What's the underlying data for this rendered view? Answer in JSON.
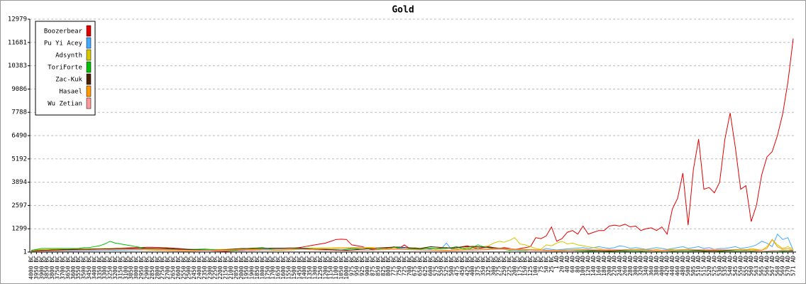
{
  "chart_data": {
    "type": "line",
    "title": "Gold",
    "categories": [
      "4000 BC",
      "3950 BC",
      "3900 BC",
      "3850 BC",
      "3800 BC",
      "3750 BC",
      "3700 BC",
      "3650 BC",
      "3600 BC",
      "3550 BC",
      "3500 BC",
      "3450 BC",
      "3400 BC",
      "3350 BC",
      "3300 BC",
      "3250 BC",
      "3200 BC",
      "3150 BC",
      "3100 BC",
      "3050 BC",
      "3000 BC",
      "2950 BC",
      "2900 BC",
      "2850 BC",
      "2800 BC",
      "2750 BC",
      "2700 BC",
      "2650 BC",
      "2600 BC",
      "2550 BC",
      "2500 BC",
      "2450 BC",
      "2400 BC",
      "2350 BC",
      "2300 BC",
      "2250 BC",
      "2200 BC",
      "2150 BC",
      "2100 BC",
      "2050 BC",
      "2000 BC",
      "1950 BC",
      "1900 BC",
      "1850 BC",
      "1800 BC",
      "1750 BC",
      "1700 BC",
      "1650 BC",
      "1600 BC",
      "1550 BC",
      "1500 BC",
      "1450 BC",
      "1400 BC",
      "1350 BC",
      "1300 BC",
      "1250 BC",
      "1200 BC",
      "1150 BC",
      "1100 BC",
      "1050 BC",
      "1000 BC",
      "975 BC",
      "950 BC",
      "925 BC",
      "900 BC",
      "875 BC",
      "850 BC",
      "825 BC",
      "800 BC",
      "775 BC",
      "750 BC",
      "725 BC",
      "700 BC",
      "675 BC",
      "650 BC",
      "625 BC",
      "600 BC",
      "575 BC",
      "550 BC",
      "525 BC",
      "500 BC",
      "475 BC",
      "450 BC",
      "425 BC",
      "400 BC",
      "375 BC",
      "350 BC",
      "325 BC",
      "300 BC",
      "275 BC",
      "250 BC",
      "225 BC",
      "200 BC",
      "175 BC",
      "150 BC",
      "125 BC",
      "100 BC",
      "75 BC",
      "50 BC",
      "25 BC",
      "1 AD",
      "20 AD",
      "40 AD",
      "60 AD",
      "80 AD",
      "100 AD",
      "120 AD",
      "140 AD",
      "160 AD",
      "180 AD",
      "200 AD",
      "220 AD",
      "240 AD",
      "260 AD",
      "280 AD",
      "300 AD",
      "320 AD",
      "340 AD",
      "360 AD",
      "380 AD",
      "400 AD",
      "420 AD",
      "440 AD",
      "460 AD",
      "480 AD",
      "500 AD",
      "505 AD",
      "510 AD",
      "515 AD",
      "520 AD",
      "525 AD",
      "530 AD",
      "535 AD",
      "540 AD",
      "545 AD",
      "550 AD",
      "555 AD",
      "560 AD",
      "563 AD",
      "565 AD",
      "566 AD",
      "567 AD",
      "568 AD",
      "569 AD",
      "570 AD",
      "571 AD"
    ],
    "series": [
      {
        "name": "Boozerbear",
        "color": "#e00000",
        "values": [
          50,
          60,
          80,
          90,
          100,
          100,
          110,
          120,
          130,
          140,
          150,
          160,
          170,
          180,
          190,
          200,
          210,
          220,
          230,
          240,
          250,
          260,
          270,
          270,
          260,
          250,
          240,
          220,
          200,
          180,
          160,
          140,
          120,
          100,
          80,
          60,
          50,
          40,
          50,
          60,
          70,
          80,
          90,
          100,
          120,
          140,
          150,
          160,
          180,
          200,
          220,
          250,
          300,
          350,
          400,
          450,
          500,
          600,
          700,
          720,
          700,
          400,
          350,
          300,
          200,
          150,
          200,
          180,
          250,
          150,
          200,
          400,
          200,
          150,
          200,
          250,
          180,
          200,
          220,
          250,
          200,
          250,
          300,
          350,
          250,
          200,
          250,
          300,
          250,
          200,
          250,
          200,
          150,
          200,
          250,
          300,
          800,
          750,
          900,
          1400,
          600,
          750,
          1100,
          1200,
          1000,
          1450,
          1000,
          1100,
          1200,
          1200,
          1450,
          1500,
          1450,
          1550,
          1400,
          1450,
          1200,
          1300,
          1350,
          1200,
          1400,
          1000,
          2400,
          3000,
          4400,
          1500,
          4600,
          6300,
          3500,
          3600,
          3300,
          3900,
          6300,
          7750,
          5800,
          3500,
          3700,
          1700,
          2600,
          4300,
          5300,
          5600,
          6500,
          7700,
          9500,
          11900
        ]
      },
      {
        "name": "Pu Yi Acey",
        "color": "#44aaff",
        "values": [
          10,
          20,
          30,
          40,
          50,
          50,
          60,
          60,
          70,
          70,
          80,
          80,
          90,
          90,
          100,
          100,
          100,
          110,
          110,
          120,
          120,
          120,
          130,
          130,
          130,
          140,
          140,
          140,
          150,
          150,
          150,
          150,
          140,
          130,
          120,
          110,
          100,
          100,
          100,
          110,
          120,
          130,
          140,
          150,
          150,
          160,
          160,
          170,
          170,
          180,
          180,
          180,
          190,
          190,
          200,
          200,
          200,
          210,
          210,
          220,
          220,
          220,
          230,
          230,
          240,
          240,
          250,
          250,
          260,
          260,
          250,
          200,
          150,
          150,
          180,
          200,
          150,
          200,
          180,
          500,
          150,
          180,
          200,
          220,
          150,
          200,
          180,
          150,
          200,
          150,
          180,
          120,
          100,
          80,
          100,
          150,
          120,
          100,
          200,
          150,
          120,
          150,
          180,
          200,
          220,
          250,
          200,
          250,
          300,
          250,
          200,
          250,
          350,
          300,
          200,
          250,
          200,
          150,
          200,
          250,
          200,
          150,
          200,
          250,
          300,
          200,
          250,
          300,
          200,
          250,
          150,
          200,
          200,
          250,
          300,
          200,
          250,
          300,
          400,
          600,
          500,
          300,
          1000,
          700,
          800,
          100
        ]
      },
      {
        "name": "Adsynth",
        "color": "#d4c800",
        "values": [
          100,
          120,
          140,
          150,
          150,
          160,
          160,
          170,
          170,
          180,
          180,
          180,
          190,
          190,
          200,
          200,
          200,
          210,
          210,
          200,
          200,
          190,
          180,
          170,
          160,
          150,
          140,
          130,
          120,
          110,
          100,
          100,
          110,
          120,
          130,
          140,
          150,
          150,
          160,
          160,
          170,
          170,
          180,
          180,
          190,
          190,
          200,
          200,
          200,
          210,
          210,
          210,
          220,
          220,
          220,
          230,
          230,
          230,
          240,
          240,
          240,
          250,
          250,
          250,
          260,
          260,
          200,
          150,
          200,
          250,
          200,
          150,
          200,
          250,
          200,
          250,
          200,
          150,
          200,
          250,
          200,
          150,
          200,
          250,
          300,
          250,
          300,
          350,
          500,
          600,
          550,
          650,
          800,
          450,
          400,
          300,
          200,
          150,
          400,
          350,
          500,
          600,
          450,
          500,
          400,
          350,
          300,
          250,
          200,
          150,
          150,
          120,
          100,
          150,
          120,
          100,
          150,
          120,
          100,
          150,
          100,
          120,
          150,
          100,
          120,
          150,
          100,
          120,
          150,
          100,
          120,
          150,
          100,
          120,
          150,
          100,
          120,
          200,
          150,
          100,
          300,
          700,
          400,
          200,
          300,
          150
        ]
      },
      {
        "name": "ToriForte",
        "color": "#00c000",
        "values": [
          100,
          150,
          200,
          200,
          200,
          200,
          200,
          200,
          200,
          200,
          250,
          250,
          300,
          350,
          450,
          600,
          500,
          450,
          400,
          350,
          300,
          250,
          200,
          200,
          200,
          200,
          200,
          180,
          160,
          150,
          150,
          150,
          160,
          170,
          150,
          130,
          120,
          110,
          100,
          100,
          150,
          200,
          220,
          230,
          250,
          200,
          150,
          100,
          120,
          150,
          180,
          200,
          220,
          200,
          180,
          160,
          150,
          140,
          130,
          120,
          150,
          200,
          180,
          150,
          200,
          100,
          150,
          200,
          150,
          300,
          200,
          150,
          200,
          180,
          150,
          200,
          220,
          200,
          180,
          200,
          250,
          300,
          200,
          150,
          250,
          400,
          300,
          250,
          200,
          200,
          150,
          100,
          120,
          100,
          80,
          100,
          120,
          100,
          80,
          60,
          50,
          60,
          70,
          80,
          60,
          50,
          40,
          50,
          60,
          50,
          40,
          50,
          60,
          40,
          50,
          60,
          40,
          50,
          60,
          40,
          50,
          60,
          40,
          50,
          60,
          40,
          50,
          60,
          40,
          50,
          60,
          40,
          50,
          60,
          40,
          50,
          60,
          40,
          50,
          60,
          40,
          50,
          60,
          40,
          50,
          60
        ]
      },
      {
        "name": "Zac-Kuk",
        "color": "#4a2000",
        "values": [
          50,
          80,
          100,
          100,
          120,
          120,
          140,
          140,
          150,
          150,
          160,
          160,
          170,
          170,
          180,
          180,
          190,
          190,
          200,
          200,
          200,
          200,
          210,
          210,
          200,
          190,
          180,
          170,
          160,
          150,
          140,
          130,
          120,
          110,
          100,
          100,
          120,
          140,
          160,
          180,
          200,
          200,
          200,
          210,
          210,
          210,
          220,
          220,
          220,
          230,
          230,
          230,
          200,
          180,
          160,
          150,
          140,
          130,
          120,
          110,
          100,
          120,
          140,
          160,
          180,
          200,
          220,
          240,
          260,
          280,
          280,
          260,
          240,
          220,
          200,
          250,
          300,
          280,
          260,
          240,
          220,
          250,
          280,
          300,
          320,
          300,
          280,
          260,
          240,
          220,
          200,
          180,
          160,
          140,
          120,
          100,
          90,
          80,
          70,
          60,
          60,
          70,
          80,
          90,
          100,
          100,
          90,
          80,
          70,
          60,
          60,
          70,
          80,
          90,
          100,
          100,
          90,
          80,
          70,
          60,
          60,
          70,
          80,
          90,
          100,
          100,
          90,
          80,
          70,
          60,
          60,
          70,
          80,
          90,
          100,
          100,
          90,
          80,
          70,
          60,
          60,
          70,
          80,
          90,
          100,
          60
        ]
      },
      {
        "name": "Hasael",
        "color": "#ff9900",
        "values": [
          30,
          40,
          50,
          60,
          70,
          80,
          90,
          100,
          100,
          110,
          110,
          120,
          120,
          130,
          130,
          140,
          140,
          150,
          150,
          150,
          140,
          130,
          120,
          110,
          100,
          90,
          80,
          70,
          60,
          50,
          50,
          60,
          70,
          80,
          90,
          100,
          110,
          120,
          130,
          140,
          150,
          150,
          140,
          130,
          120,
          110,
          100,
          100,
          110,
          120,
          130,
          140,
          150,
          160,
          170,
          180,
          190,
          200,
          210,
          220,
          230,
          240,
          250,
          240,
          230,
          220,
          210,
          200,
          190,
          180,
          170,
          160,
          150,
          140,
          130,
          120,
          110,
          100,
          100,
          100,
          110,
          120,
          130,
          140,
          150,
          160,
          170,
          180,
          190,
          200,
          190,
          180,
          170,
          160,
          150,
          140,
          130,
          120,
          110,
          100,
          100,
          110,
          120,
          130,
          140,
          150,
          140,
          130,
          120,
          110,
          100,
          110,
          120,
          130,
          140,
          150,
          140,
          130,
          120,
          110,
          100,
          110,
          120,
          130,
          140,
          150,
          140,
          130,
          120,
          110,
          100,
          110,
          120,
          130,
          140,
          150,
          140,
          130,
          120,
          110,
          200,
          700,
          300,
          150,
          200,
          100
        ]
      },
      {
        "name": "Wu Zetian",
        "color": "#ff9999",
        "values": [
          20,
          30,
          40,
          50,
          60,
          70,
          80,
          90,
          100,
          100,
          110,
          110,
          120,
          120,
          130,
          130,
          140,
          140,
          150,
          150,
          150,
          150,
          140,
          140,
          130,
          130,
          120,
          120,
          110,
          110,
          100,
          100,
          90,
          90,
          80,
          80,
          70,
          70,
          60,
          60,
          70,
          80,
          90,
          100,
          110,
          120,
          130,
          140,
          150,
          160,
          160,
          150,
          140,
          130,
          120,
          110,
          100,
          90,
          80,
          70,
          60,
          70,
          80,
          90,
          100,
          110,
          120,
          130,
          140,
          150,
          150,
          140,
          130,
          120,
          110,
          100,
          90,
          80,
          70,
          60,
          60,
          70,
          80,
          90,
          100,
          110,
          120,
          130,
          140,
          150,
          150,
          140,
          130,
          120,
          110,
          100,
          90,
          80,
          70,
          60,
          60,
          70,
          80,
          90,
          100,
          110,
          120,
          130,
          140,
          150,
          150,
          140,
          130,
          120,
          110,
          100,
          90,
          80,
          70,
          60,
          60,
          70,
          80,
          90,
          100,
          110,
          120,
          130,
          140,
          150,
          150,
          140,
          130,
          120,
          110,
          100,
          90,
          80,
          70,
          60,
          60,
          70,
          80,
          90,
          100,
          110
        ]
      }
    ],
    "ylim": [
      1,
      12979
    ],
    "yticks": [
      1,
      1299,
      2597,
      3894,
      5192,
      6490,
      7788,
      9086,
      10383,
      11681,
      12979
    ],
    "grid": true,
    "legend": "upper left"
  }
}
